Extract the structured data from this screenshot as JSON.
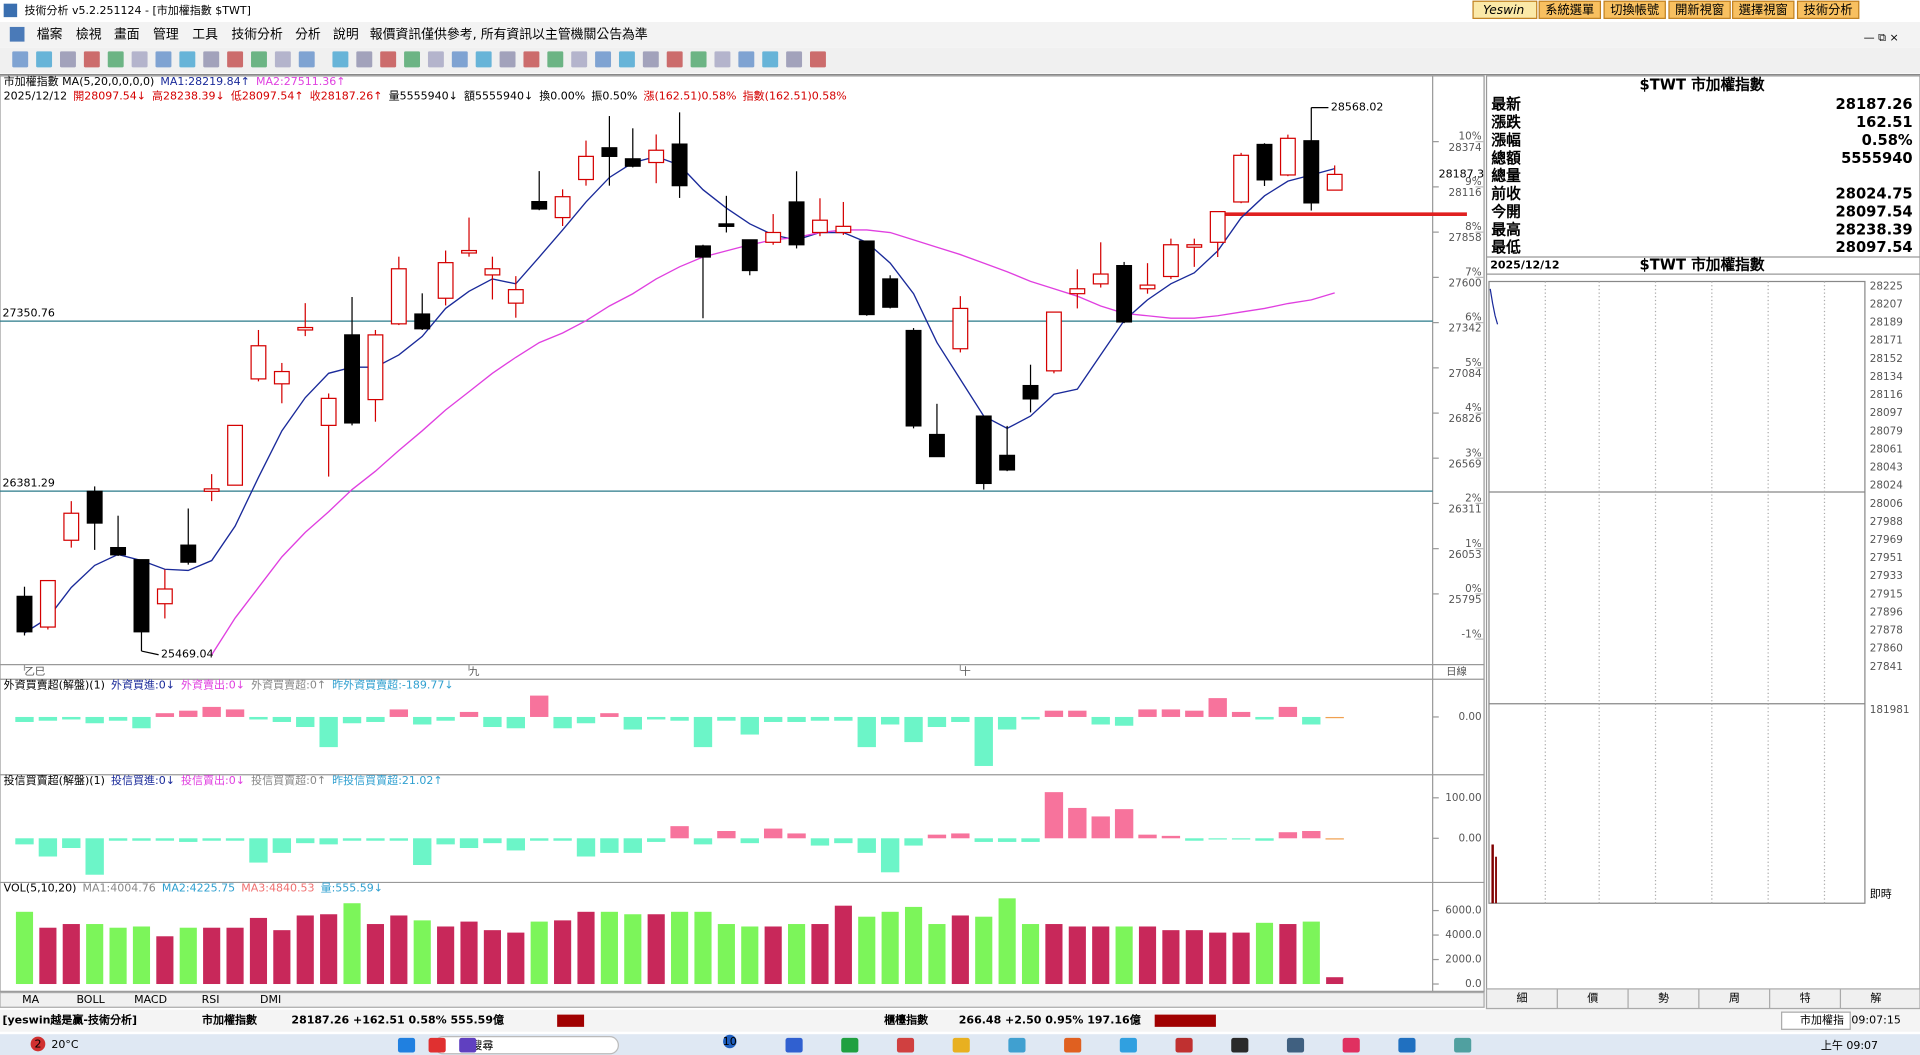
{
  "window": {
    "title": "技術分析 v5.2.251124 - [市加權指數 $TWT]",
    "buttons": [
      "Yeswin",
      "系統選單",
      "切換帳號",
      "開新視窗",
      "選擇視窗",
      "技術分析"
    ]
  },
  "menu": {
    "items": [
      "檔案",
      "檢視",
      "畫面",
      "管理",
      "工具",
      "技術分析",
      "分析",
      "說明"
    ],
    "notice": "報價資訊僅供參考, 所有資訊以主管機關公告為準"
  },
  "info_lines": [
    [
      {
        "text": "市加權指數 MA(5,20,0,0,0,0)",
        "color": "#000000"
      },
      {
        "text": "MA1:28219.84↑",
        "color": "#1a2a9a"
      },
      {
        "text": "MA2:27511.36↑",
        "color": "#e040e0"
      }
    ],
    [
      {
        "text": "2025/12/12",
        "color": "#000000"
      },
      {
        "text": "開28097.54↓",
        "color": "#d40000"
      },
      {
        "text": "高28238.39↓",
        "color": "#d40000"
      },
      {
        "text": "低28097.54↑",
        "color": "#d40000"
      },
      {
        "text": "收28187.26↑",
        "color": "#d40000"
      },
      {
        "text": "量5555940↓",
        "color": "#000000"
      },
      {
        "text": "額5555940↓",
        "color": "#000000"
      },
      {
        "text": "換0.00%",
        "color": "#000000"
      },
      {
        "text": "振0.50%",
        "color": "#000000"
      },
      {
        "text": "漲(162.51)0.58%",
        "color": "#d40000"
      },
      {
        "text": "指數(162.51)0.58%",
        "color": "#d40000"
      }
    ]
  ],
  "chart_data": [
    {
      "type": "candlestick",
      "categories": [
        "乙巳",
        null,
        null,
        null,
        null,
        null,
        null,
        null,
        null,
        null,
        null,
        null,
        null,
        null,
        null,
        null,
        null,
        null,
        null,
        "九",
        null,
        null,
        null,
        null,
        null,
        null,
        null,
        null,
        null,
        null,
        null,
        null,
        null,
        null,
        null,
        null,
        null,
        null,
        null,
        null,
        "十",
        null,
        null,
        null,
        null,
        null,
        null,
        null,
        null,
        null,
        null,
        null,
        null,
        null,
        null,
        null,
        null
      ],
      "open": [
        25781,
        25606,
        26101,
        26380,
        26059,
        25990,
        25739,
        26073,
        26380,
        26415,
        27021,
        26993,
        27300,
        26756,
        27272,
        26903,
        27335,
        27391,
        27481,
        27739,
        27614,
        27453,
        28032,
        27941,
        28158,
        28339,
        28276,
        28255,
        28360,
        27779,
        27905,
        27814,
        27800,
        28030,
        27856,
        27856,
        27807,
        27591,
        27297,
        26704,
        27193,
        26809,
        26585,
        26983,
        27067,
        27507,
        27563,
        27667,
        27535,
        27605,
        27772,
        27800,
        28030,
        28358,
        28184,
        28379,
        28097.54
      ],
      "high": [
        25836,
        25871,
        26324,
        26408,
        26241,
        25990,
        25934,
        26282,
        26478,
        26756,
        27300,
        27112,
        27453,
        26938,
        27488,
        27300,
        27718,
        27509,
        27753,
        27941,
        27718,
        27607,
        28206,
        28102,
        28380,
        28520,
        28450,
        28415,
        28541,
        27786,
        28065,
        27814,
        27961,
        28205,
        28051,
        28030,
        27807,
        27612,
        27311,
        26879,
        27493,
        26809,
        26753,
        27102,
        27402,
        27646,
        27800,
        27688,
        27681,
        27821,
        27821,
        27975,
        28310,
        28365,
        28414,
        28568.02,
        28238.39
      ],
      "low": [
        25558,
        25592,
        26059,
        26046,
        26011,
        25469.04,
        25655,
        25962,
        26324,
        26415,
        27007,
        26882,
        27265,
        26464,
        26756,
        26777,
        27328,
        27300,
        27440,
        27718,
        27474,
        27370,
        27983,
        27893,
        28123,
        28123,
        28227,
        28137,
        28053,
        27367,
        27856,
        27612,
        27786,
        27765,
        27835,
        27842,
        27381,
        27423,
        26739,
        26578,
        27172,
        26390,
        26495,
        26830,
        27053,
        27423,
        27542,
        27339,
        27507,
        27591,
        27660,
        27716,
        28023,
        28121,
        28177,
        27981,
        28097.54
      ],
      "close": [
        25579,
        25871,
        26255,
        26199,
        26018,
        25579,
        25823,
        25976,
        26394,
        26756,
        27210,
        27063,
        27314,
        26910,
        26770,
        27272,
        27649,
        27307,
        27684,
        27753,
        27649,
        27530,
        27990,
        28060,
        28290,
        28290,
        28234,
        28325,
        28123,
        27716,
        27891,
        27639,
        27856,
        27786,
        27926,
        27891,
        27388,
        27430,
        26753,
        26578,
        27423,
        26425,
        26502,
        26907,
        27402,
        27535,
        27619,
        27346,
        27556,
        27786,
        27786,
        27975,
        28296,
        28156,
        28393,
        28024.75,
        28187.26
      ],
      "up_color": "#d40000",
      "down_color": "#000000",
      "ma": [
        {
          "color": "#1a2a9a",
          "values": [
            25573,
            25657,
            25832,
            25957,
            26020,
            25985,
            25936,
            25929,
            25985,
            26181,
            26460,
            26725,
            26914,
            27053,
            27088,
            27088,
            27158,
            27263,
            27423,
            27521,
            27591,
            27563,
            27716,
            27870,
            28030,
            28170,
            28254,
            28289,
            28240,
            28100,
            27995,
            27905,
            27842,
            27814,
            27856,
            27856,
            27800,
            27681,
            27507,
            27228,
            27018,
            26809,
            26739,
            26809,
            26934,
            26962,
            27158,
            27353,
            27472,
            27563,
            27626,
            27751,
            27940,
            28065,
            28149,
            28184,
            28219.84
          ]
        },
        {
          "color": "#e040e0",
          "values": [
            null,
            null,
            null,
            null,
            null,
            null,
            null,
            null,
            25448,
            25657,
            25832,
            26006,
            26146,
            26264,
            26390,
            26495,
            26613,
            26725,
            26844,
            26948,
            27053,
            27144,
            27228,
            27283,
            27353,
            27437,
            27507,
            27591,
            27660,
            27716,
            27751,
            27786,
            27814,
            27828,
            27856,
            27870,
            27870,
            27856,
            27814,
            27772,
            27730,
            27681,
            27632,
            27577,
            27535,
            27493,
            27437,
            27395,
            27381,
            27367,
            27367,
            27381,
            27402,
            27423,
            27451,
            27472,
            27511.36
          ]
        }
      ],
      "ylim": [
        25392,
        28749
      ],
      "yticks": [
        28374,
        28116,
        27858,
        27600,
        27342,
        27084,
        26826,
        26569,
        26311,
        26053,
        25795
      ],
      "pct_ticks": [
        {
          "value": 28374,
          "label": "10%"
        },
        {
          "value": 28116,
          "label": "9%"
        },
        {
          "value": 27858,
          "label": "8%"
        },
        {
          "value": 27600,
          "label": "7%"
        },
        {
          "value": 27342,
          "label": "6%"
        },
        {
          "value": 27084,
          "label": "5%"
        },
        {
          "value": 26826,
          "label": "4%"
        },
        {
          "value": 26569,
          "label": "3%"
        },
        {
          "value": 26311,
          "label": "2%"
        },
        {
          "value": 26053,
          "label": "1%"
        },
        {
          "value": 25795,
          "label": "0%"
        },
        {
          "value": 25537,
          "label": "-1%"
        }
      ],
      "hlines": [
        27350.76,
        26381.29
      ],
      "hline_color": "#2a7a8a",
      "high_label": 28568.02,
      "low_label": 25469.04,
      "last_marker": {
        "value": 28187.26,
        "label": "28187.3"
      },
      "x_axis_label": "日線"
    },
    {
      "type": "bar",
      "title": [
        {
          "text": "外資買賣超(解盤)(1)",
          "color": "#000000"
        },
        {
          "text": "外資買進:0↓",
          "color": "#1a2a9a"
        },
        {
          "text": "外資賣出:0↓",
          "color": "#e040e0"
        },
        {
          "text": "外資買賣超:0↑",
          "color": "#888888"
        },
        {
          "text": "昨外資買賣超:-189.77↓",
          "color": "#30a0d0"
        }
      ],
      "values": [
        -4,
        -3,
        -2,
        -5,
        -3,
        -9,
        3,
        5,
        8,
        6,
        -2,
        -4,
        -8,
        -24,
        -5,
        -4,
        6,
        -6,
        -3,
        4,
        -8,
        -9,
        17,
        -9,
        -5,
        3,
        -10,
        -2,
        -3,
        -24,
        -3,
        -14,
        -4,
        -4,
        -3,
        -3,
        -24,
        -6,
        -20,
        -8,
        -4,
        -39,
        -10,
        -2,
        5,
        5,
        -6,
        -7,
        6,
        6,
        5,
        15,
        4,
        -2,
        8,
        -6,
        0
      ],
      "up_color": "#f7739c",
      "down_color": "#6cf5c8",
      "ylim": [
        -45,
        30
      ],
      "yticks": [
        {
          "value": 0,
          "label": "0.00"
        }
      ]
    },
    {
      "type": "bar",
      "title": [
        {
          "text": "投信買賣超(解盤)(1)",
          "color": "#000000"
        },
        {
          "text": "投信買進:0↓",
          "color": "#1a2a9a"
        },
        {
          "text": "投信賣出:0↓",
          "color": "#e040e0"
        },
        {
          "text": "投信買賣超:0↑",
          "color": "#888888"
        },
        {
          "text": "昨投信買賣超:21.02↑",
          "color": "#30a0d0"
        }
      ],
      "values": [
        -15,
        -45,
        -24,
        -90,
        -6,
        -6,
        -6,
        -9,
        -6,
        -6,
        -60,
        -36,
        -12,
        -15,
        -6,
        -6,
        -6,
        -66,
        -15,
        -24,
        -12,
        -30,
        -6,
        -6,
        -45,
        -36,
        -36,
        -9,
        30,
        -15,
        18,
        -12,
        24,
        12,
        -18,
        -12,
        -36,
        -84,
        -18,
        9,
        12,
        -9,
        -9,
        -9,
        114,
        75,
        54,
        72,
        9,
        6,
        -6,
        -3,
        -3,
        -6,
        15,
        18,
        0
      ],
      "up_color": "#f7739c",
      "down_color": "#6cf5c8",
      "ylim": [
        -106,
        154
      ],
      "yticks": [
        {
          "value": 100,
          "label": "100.00"
        },
        {
          "value": 0,
          "label": "0.00"
        }
      ]
    },
    {
      "type": "volume",
      "title": [
        {
          "text": "VOL(5,10,20)",
          "color": "#000000"
        },
        {
          "text": "MA1:4004.76",
          "color": "#888888"
        },
        {
          "text": "MA2:4225.75",
          "color": "#30a0d0"
        },
        {
          "text": "MA3:4840.53",
          "color": "#f07070"
        },
        {
          "text": "量:555.59↓",
          "color": "#30a0d0"
        }
      ],
      "values": [
        5900,
        4600,
        4900,
        4900,
        4600,
        4700,
        3900,
        4600,
        4600,
        4600,
        5400,
        4400,
        5600,
        5700,
        6600,
        4900,
        5600,
        5200,
        4700,
        5100,
        4400,
        4200,
        5100,
        5200,
        5900,
        5900,
        5700,
        5700,
        5900,
        5900,
        4900,
        4700,
        4700,
        4900,
        4900,
        6400,
        5500,
        5900,
        6300,
        4900,
        5600,
        5500,
        7000,
        4900,
        4900,
        4700,
        4700,
        4700,
        4700,
        4400,
        4400,
        4200,
        4200,
        5000,
        4900,
        5100,
        555.59
      ],
      "up_color": "#c8285a",
      "down_color": "#7cf55a",
      "ylim": [
        -600,
        8200
      ],
      "yticks": [
        {
          "value": 6000,
          "label": "6000.0"
        },
        {
          "value": 4000,
          "label": "4000.0"
        },
        {
          "value": 2000,
          "label": "2000.0"
        },
        {
          "value": 0,
          "label": "0.0"
        }
      ]
    }
  ],
  "indicator_tabs": [
    "MA",
    "BOLL",
    "MACD",
    "RSI",
    "DMI"
  ],
  "quote": {
    "title": "$TWT 市加權指數",
    "rows": [
      {
        "label": "最新",
        "value": 28187.26,
        "color": "#d40000"
      },
      {
        "label": "漲跌",
        "value": 162.51,
        "color": "#d40000"
      },
      {
        "label": "漲幅",
        "value": "0.58%",
        "color": "#d40000"
      },
      {
        "label": "總額",
        "value": 5555940,
        "color": "#000000"
      },
      {
        "label": "總量"
      },
      {
        "label": "前收",
        "value": 28024.75,
        "color": "#000000"
      },
      {
        "label": "今開",
        "value": 28097.54,
        "color": "#d40000"
      },
      {
        "label": "最高",
        "value": 28238.39,
        "color": "#d40000"
      },
      {
        "label": "最低",
        "value": 28097.54,
        "color": "#d40000"
      }
    ]
  },
  "intraday": {
    "date": "2025/12/12",
    "title": "$TWT 市加權指數",
    "ladder_up": [
      28225,
      28207,
      28189,
      28171,
      28152,
      28134,
      28116,
      28097,
      28079,
      28061,
      28043
    ],
    "ladder_flat": [
      28024
    ],
    "ladder_down": [
      28006,
      27988,
      27969,
      27951,
      27933,
      27915,
      27896,
      27878,
      27860,
      27841
    ],
    "up_color": "#c0187a",
    "flat_color": "#000000",
    "down_color": "#000000",
    "volume_max": 181981,
    "realtime": "即時",
    "tabs": [
      "細",
      "價",
      "勢",
      "周",
      "特",
      "解"
    ],
    "active_tab": 2
  },
  "status": {
    "brand": "[yeswin越是贏-技術分析]",
    "taiex_name": "市加權指數",
    "taiex_quote": "28187.26 +162.51 0.58% 555.59億",
    "otc_name": "櫃檯指數",
    "otc_quote": "266.48 +2.50 0.95% 197.16億",
    "tab": "市加權指",
    "clock": "09:07:15"
  },
  "taskbar": {
    "badge": 2,
    "weather": "20°C",
    "search": "搜尋",
    "badge2": 10,
    "time": "上午 09:07"
  }
}
